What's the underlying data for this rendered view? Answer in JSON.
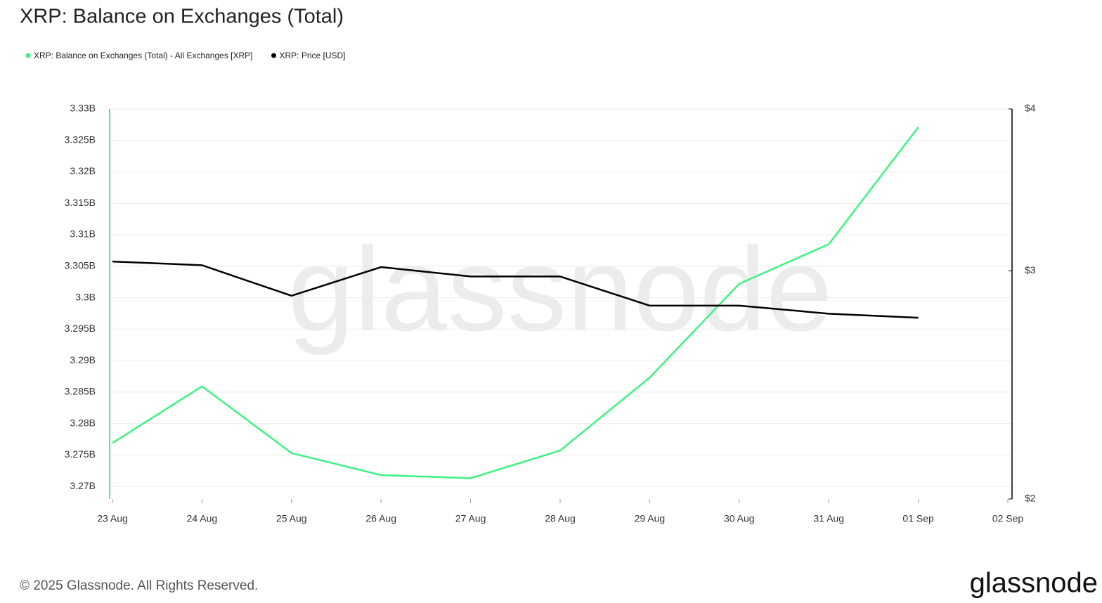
{
  "chart_data": {
    "type": "line",
    "title": "XRP: Balance on Exchanges (Total)",
    "categories": [
      "23 Aug",
      "24 Aug",
      "25 Aug",
      "26 Aug",
      "27 Aug",
      "28 Aug",
      "29 Aug",
      "30 Aug",
      "31 Aug",
      "01 Sep",
      "02 Sep"
    ],
    "series": [
      {
        "name": "XRP: Balance on Exchanges (Total) - All Exchanges [XRP]",
        "color": "#3ef383",
        "axis": "y",
        "values": [
          3276900000,
          3285900000,
          3275300000,
          3271800000,
          3271300000,
          3275700000,
          3287300000,
          3302200000,
          3308500000,
          3327100000,
          null
        ]
      },
      {
        "name": "XRP: Price [USD]",
        "color": "#000000",
        "axis": "y2",
        "values": [
          3.05,
          3.03,
          2.87,
          3.02,
          2.97,
          2.97,
          2.82,
          2.82,
          2.78,
          2.76,
          null
        ]
      }
    ],
    "ylim": [
      3268000000,
      3330000000
    ],
    "yticks": [
      {
        "value": 3270000000,
        "label": "3.27B"
      },
      {
        "value": 3275000000,
        "label": "3.275B"
      },
      {
        "value": 3280000000,
        "label": "3.28B"
      },
      {
        "value": 3285000000,
        "label": "3.285B"
      },
      {
        "value": 3290000000,
        "label": "3.29B"
      },
      {
        "value": 3295000000,
        "label": "3.295B"
      },
      {
        "value": 3300000000,
        "label": "3.3B"
      },
      {
        "value": 3305000000,
        "label": "3.305B"
      },
      {
        "value": 3310000000,
        "label": "3.31B"
      },
      {
        "value": 3315000000,
        "label": "3.315B"
      },
      {
        "value": 3320000000,
        "label": "3.32B"
      },
      {
        "value": 3325000000,
        "label": "3.325B"
      },
      {
        "value": 3330000000,
        "label": "3.33B"
      }
    ],
    "y2lim": [
      2,
      4
    ],
    "y2log": true,
    "y2ticks": [
      {
        "value": 2,
        "label": "$2"
      },
      {
        "value": 3,
        "label": "$3"
      },
      {
        "value": 4,
        "label": "$4"
      }
    ],
    "grid": true,
    "legend": "top-left",
    "watermark": "glassnode",
    "footer": "© 2025 Glassnode. All Rights Reserved.",
    "logo": "glassnode"
  }
}
